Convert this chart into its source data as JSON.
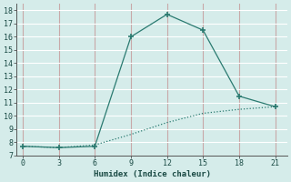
{
  "xlabel": "Humidex (Indice chaleur)",
  "background_color": "#d5ecea",
  "grid_color": "#b8d8d8",
  "line_color": "#2a7a70",
  "line1_x": [
    0,
    3,
    6,
    9,
    12,
    15,
    18,
    21
  ],
  "line1_y": [
    7.7,
    7.6,
    7.7,
    16.0,
    17.7,
    16.5,
    11.5,
    10.7
  ],
  "line2_x": [
    0,
    3,
    6,
    9,
    12,
    15,
    18,
    21
  ],
  "line2_y": [
    7.7,
    7.6,
    7.8,
    8.6,
    9.5,
    10.2,
    10.5,
    10.7
  ],
  "xlim": [
    -0.5,
    22
  ],
  "ylim": [
    7,
    18.5
  ],
  "xticks": [
    0,
    3,
    6,
    9,
    12,
    15,
    18,
    21
  ],
  "yticks": [
    7,
    8,
    9,
    10,
    11,
    12,
    13,
    14,
    15,
    16,
    17,
    18
  ]
}
